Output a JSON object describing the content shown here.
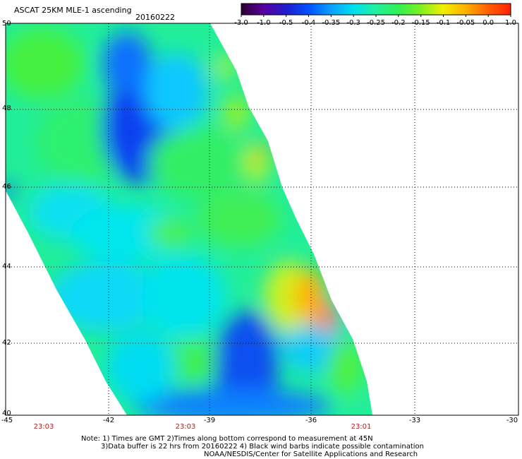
{
  "header": {
    "title": "ASCAT 25KM MLE-1 ascending",
    "date": "20160222"
  },
  "colorbar": {
    "labels": [
      "-3.0",
      "-1.0",
      "-0.5",
      "-0.4",
      "-0.35",
      "-0.3",
      "-0.25",
      "-0.2",
      "-0.15",
      "-0.1",
      "-0.05",
      "0.0",
      "1.0"
    ],
    "colors": [
      "#2a0030",
      "#5a00a0",
      "#1e1ecc",
      "#0050ff",
      "#0aa0ff",
      "#00e0ee",
      "#20f0a0",
      "#30f050",
      "#80f020",
      "#f0f000",
      "#ffb000",
      "#ff6000",
      "#ff2000"
    ]
  },
  "map": {
    "latitudes": [
      "50",
      "48",
      "46",
      "44",
      "42",
      "40"
    ],
    "longitudes": [
      "-45",
      "-42",
      "-39",
      "-36",
      "-33",
      "-30"
    ],
    "times": [
      "23:03",
      "23:03",
      "23:01"
    ]
  },
  "notes": {
    "line1": "Note: 1) Times are GMT 2)Times along bottom correspond to measurement at 45N",
    "line2": "3)Data buffer is 22 hrs from 20160222 4) Black wind barbs indicate possible contamination",
    "line3": "NOAA/NESDIS/Center for Satellite Applications and Research"
  }
}
